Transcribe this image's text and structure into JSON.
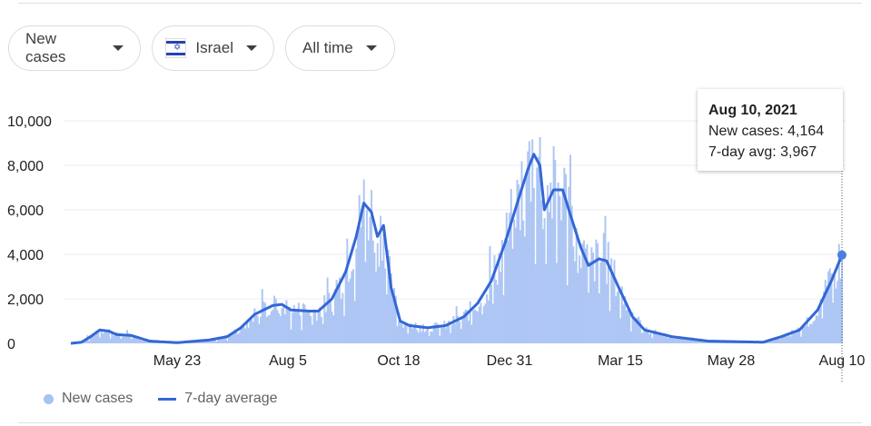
{
  "controls": {
    "metric": "New cases",
    "country": "Israel",
    "range": "All time",
    "flag_icon": "israel-flag-icon"
  },
  "tooltip": {
    "date": "Aug 10, 2021",
    "new_cases": "New cases: 4,164",
    "avg": "7-day avg: 3,967"
  },
  "legend": {
    "bars": "New cases",
    "line": "7-day average"
  },
  "colors": {
    "bar": "#aec6f4",
    "line": "#3367d6"
  },
  "chart_data": {
    "type": "bar+line",
    "title": "",
    "ylim": [
      0,
      10000
    ],
    "yticks": [
      0,
      2000,
      4000,
      6000,
      8000,
      10000
    ],
    "ytick_labels": [
      "0",
      "2,000",
      "4,000",
      "6,000",
      "8,000",
      "10,000"
    ],
    "xtick_labels": [
      "May 23",
      "Aug 5",
      "Oct 18",
      "Dec 31",
      "Mar 15",
      "May 28",
      "Aug 10"
    ],
    "xtick_days": [
      70,
      143,
      216,
      289,
      362,
      435,
      508
    ],
    "days": 509,
    "last_new_cases": 4164,
    "last_avg": 3967,
    "avg_keypoints": [
      [
        0,
        0
      ],
      [
        7,
        50
      ],
      [
        13,
        300
      ],
      [
        19,
        600
      ],
      [
        25,
        550
      ],
      [
        30,
        400
      ],
      [
        40,
        350
      ],
      [
        52,
        100
      ],
      [
        70,
        30
      ],
      [
        91,
        150
      ],
      [
        103,
        300
      ],
      [
        112,
        700
      ],
      [
        121,
        1300
      ],
      [
        133,
        1700
      ],
      [
        139,
        1750
      ],
      [
        145,
        1500
      ],
      [
        157,
        1450
      ],
      [
        163,
        1450
      ],
      [
        172,
        2000
      ],
      [
        181,
        3200
      ],
      [
        188,
        4800
      ],
      [
        193,
        6300
      ],
      [
        198,
        5900
      ],
      [
        202,
        4800
      ],
      [
        206,
        5300
      ],
      [
        211,
        2500
      ],
      [
        217,
        1000
      ],
      [
        223,
        800
      ],
      [
        235,
        700
      ],
      [
        247,
        800
      ],
      [
        259,
        1200
      ],
      [
        268,
        1800
      ],
      [
        277,
        2800
      ],
      [
        286,
        4500
      ],
      [
        295,
        6500
      ],
      [
        301,
        7800
      ],
      [
        305,
        8500
      ],
      [
        309,
        8000
      ],
      [
        312,
        6000
      ],
      [
        318,
        6900
      ],
      [
        324,
        6900
      ],
      [
        329,
        5800
      ],
      [
        336,
        4300
      ],
      [
        341,
        3500
      ],
      [
        348,
        3800
      ],
      [
        353,
        3700
      ],
      [
        361,
        2500
      ],
      [
        370,
        1200
      ],
      [
        378,
        600
      ],
      [
        396,
        300
      ],
      [
        420,
        100
      ],
      [
        456,
        50
      ],
      [
        468,
        300
      ],
      [
        480,
        600
      ],
      [
        492,
        1500
      ],
      [
        501,
        2800
      ],
      [
        508,
        3967
      ]
    ]
  }
}
